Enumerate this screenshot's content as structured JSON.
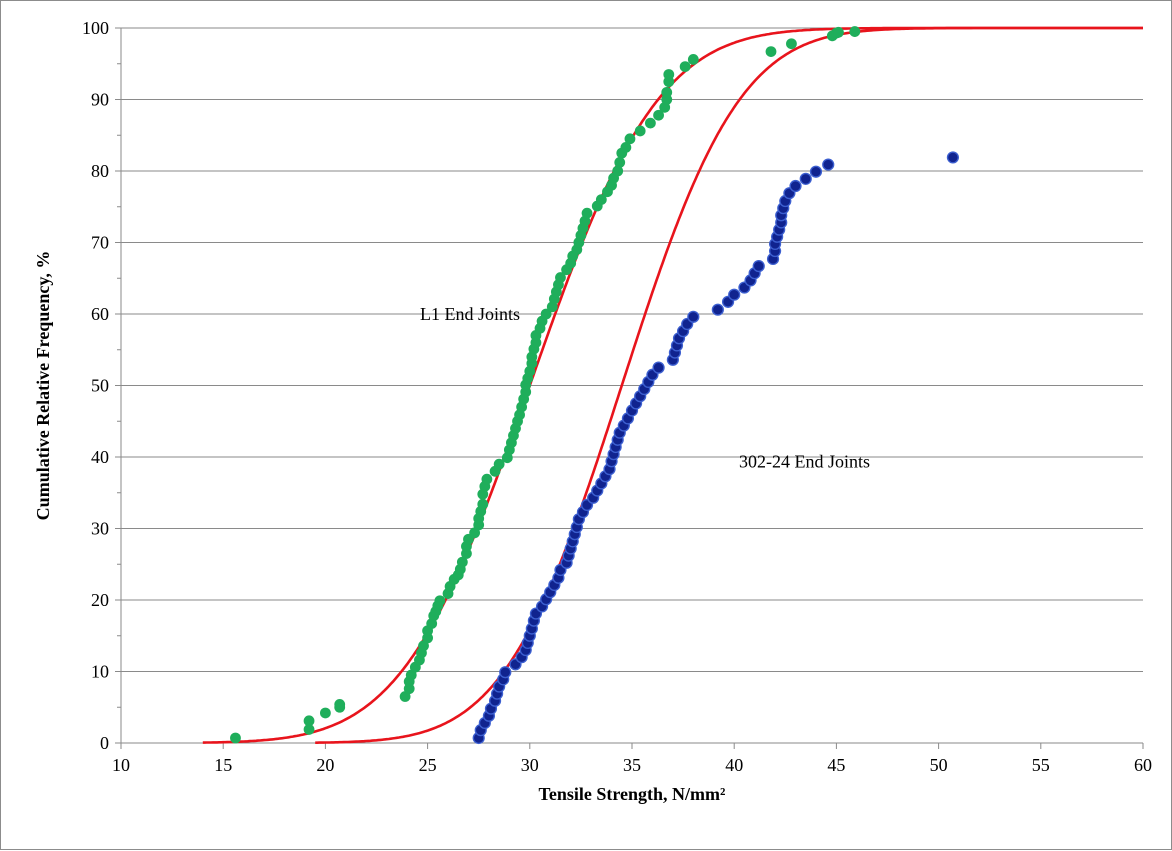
{
  "chart_data": {
    "type": "scatter",
    "title": "",
    "xlabel": "Tensile Strength, N/mm²",
    "ylabel": "Cumulative  Relative Frequency, %",
    "xlim": [
      10,
      60
    ],
    "ylim": [
      0,
      100
    ],
    "xticks": [
      "10",
      "15",
      "20",
      "25",
      "30",
      "35",
      "40",
      "45",
      "50",
      "55",
      "60"
    ],
    "yticks": [
      "0",
      "10",
      "20",
      "30",
      "40",
      "50",
      "60",
      "70",
      "80",
      "90",
      "100"
    ],
    "grid": "horizontal",
    "legend": "none",
    "colors": {
      "l1": "#1fae5b",
      "s302": "#10238f",
      "s302_edge": "#3c5fd0",
      "fit": "#e8141c"
    },
    "annotations": [
      {
        "text": "L1 End Joints",
        "series": "L1 End Joints",
        "x": 30.5,
        "y": 60
      },
      {
        "text": "302-24 End Joints",
        "series": "302-24 End Joints",
        "x": 35,
        "y": 38
      }
    ],
    "fit_curves": [
      {
        "series": "L1 End Joints",
        "distribution": "normal",
        "mean": 30.0,
        "sd": 4.9,
        "xmin": 14.0
      },
      {
        "series": "302-24 End Joints",
        "distribution": "normal",
        "mean": 34.5,
        "sd": 4.5,
        "xmin": 19.5
      }
    ],
    "series": [
      {
        "name": "L1 End Joints",
        "x": [
          15.6,
          19.2,
          19.2,
          20.0,
          20.7,
          20.7,
          23.9,
          24.1,
          24.1,
          24.2,
          24.4,
          24.6,
          24.7,
          24.8,
          25.0,
          25.0,
          25.2,
          25.3,
          25.4,
          25.5,
          25.6,
          26.0,
          26.1,
          26.3,
          26.5,
          26.6,
          26.7,
          26.9,
          26.9,
          27.0,
          27.3,
          27.5,
          27.5,
          27.6,
          27.7,
          27.7,
          27.8,
          27.9,
          28.3,
          28.5,
          28.9,
          29.0,
          29.1,
          29.2,
          29.3,
          29.4,
          29.5,
          29.6,
          29.7,
          29.8,
          29.8,
          29.9,
          30.0,
          30.1,
          30.1,
          30.2,
          30.3,
          30.3,
          30.5,
          30.6,
          30.8,
          31.1,
          31.2,
          31.3,
          31.4,
          31.5,
          31.8,
          32.0,
          32.1,
          32.3,
          32.4,
          32.5,
          32.6,
          32.7,
          32.8,
          33.3,
          33.5,
          33.8,
          34.0,
          34.1,
          34.3,
          34.4,
          34.5,
          34.7,
          34.9,
          35.4,
          35.9,
          36.3,
          36.6,
          36.7,
          36.7,
          36.8,
          36.8,
          37.6,
          38.0,
          41.8,
          42.8,
          44.8,
          45.0,
          45.1,
          45.9
        ],
        "y": [
          0.7,
          1.9,
          3.1,
          4.2,
          5.0,
          5.4,
          6.5,
          7.6,
          8.6,
          9.5,
          10.6,
          11.6,
          12.6,
          13.6,
          14.7,
          15.7,
          16.7,
          17.8,
          18.4,
          19.2,
          19.9,
          20.9,
          21.9,
          22.9,
          23.5,
          24.3,
          25.3,
          26.5,
          27.5,
          28.5,
          29.4,
          30.5,
          31.4,
          32.4,
          33.4,
          34.8,
          35.9,
          36.9,
          38.0,
          39.0,
          39.9,
          41.0,
          42.0,
          43.0,
          44.0,
          45.0,
          45.9,
          47.0,
          48.1,
          49.1,
          50.1,
          51.0,
          52.0,
          53.1,
          54.0,
          55.1,
          56.0,
          57.0,
          58.0,
          59.0,
          60.0,
          61.0,
          62.1,
          63.1,
          64.1,
          65.1,
          66.2,
          67.1,
          68.1,
          69.0,
          70.0,
          71.0,
          72.0,
          73.0,
          74.1,
          75.1,
          76.0,
          77.1,
          78.0,
          79.0,
          80.0,
          81.2,
          82.5,
          83.3,
          84.5,
          85.6,
          86.7,
          87.8,
          88.9,
          90.0,
          91.0,
          92.5,
          93.5,
          94.6,
          95.6,
          96.7,
          97.8,
          98.9,
          99.3,
          99.4,
          99.5
        ]
      },
      {
        "name": "302-24 End Joints",
        "x": [
          27.5,
          27.6,
          27.8,
          28.0,
          28.1,
          28.3,
          28.4,
          28.5,
          28.7,
          28.8,
          29.3,
          29.6,
          29.8,
          29.9,
          30.0,
          30.1,
          30.2,
          30.3,
          30.6,
          30.8,
          31.0,
          31.2,
          31.4,
          31.5,
          31.8,
          31.9,
          32.0,
          32.1,
          32.2,
          32.3,
          32.4,
          32.6,
          32.8,
          33.1,
          33.3,
          33.5,
          33.7,
          33.9,
          34.0,
          34.1,
          34.2,
          34.3,
          34.4,
          34.6,
          34.8,
          35.0,
          35.2,
          35.4,
          35.6,
          35.8,
          36.0,
          36.3,
          37.0,
          37.1,
          37.2,
          37.3,
          37.5,
          37.7,
          38.0,
          39.2,
          39.7,
          40.0,
          40.5,
          40.8,
          41.0,
          41.2,
          41.9,
          42.0,
          42.0,
          42.1,
          42.2,
          42.3,
          42.3,
          42.4,
          42.5,
          42.7,
          43.0,
          43.5,
          44.0,
          44.6,
          50.7
        ],
        "y": [
          0.7,
          1.8,
          2.8,
          3.8,
          4.8,
          5.9,
          6.9,
          7.9,
          8.9,
          9.9,
          11.0,
          12.0,
          13.0,
          14.0,
          15.0,
          16.0,
          17.1,
          18.1,
          19.1,
          20.1,
          21.1,
          22.1,
          23.1,
          24.2,
          25.2,
          26.2,
          27.2,
          28.2,
          29.2,
          30.2,
          31.3,
          32.3,
          33.3,
          34.3,
          35.3,
          36.3,
          37.3,
          38.3,
          39.4,
          40.4,
          41.4,
          42.4,
          43.4,
          44.4,
          45.4,
          46.5,
          47.5,
          48.5,
          49.5,
          50.5,
          51.5,
          52.5,
          53.6,
          54.6,
          55.6,
          56.6,
          57.6,
          58.6,
          59.6,
          60.6,
          61.7,
          62.7,
          63.7,
          64.7,
          65.7,
          66.7,
          67.7,
          68.8,
          69.8,
          70.8,
          71.8,
          72.8,
          73.8,
          74.8,
          75.8,
          76.9,
          77.9,
          78.9,
          79.9,
          80.9,
          81.9
        ]
      }
    ]
  }
}
